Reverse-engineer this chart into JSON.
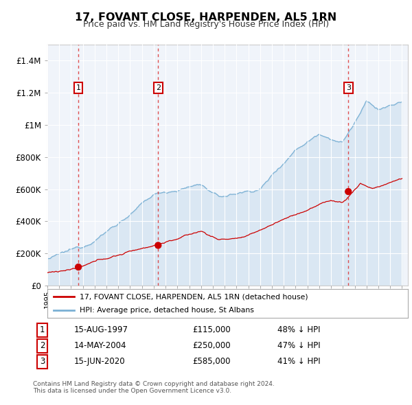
{
  "title": "17, FOVANT CLOSE, HARPENDEN, AL5 1RN",
  "subtitle": "Price paid vs. HM Land Registry's House Price Index (HPI)",
  "background_color": "#ffffff",
  "plot_bg_color": "#f0f4fa",
  "ylim": [
    0,
    1500000
  ],
  "yticks": [
    0,
    200000,
    400000,
    600000,
    800000,
    1000000,
    1200000,
    1400000
  ],
  "ytick_labels": [
    "£0",
    "£200K",
    "£400K",
    "£600K",
    "£800K",
    "£1M",
    "£1.2M",
    "£1.4M"
  ],
  "transactions": [
    {
      "date_decimal": 1997.62,
      "price": 115000,
      "label": "1"
    },
    {
      "date_decimal": 2004.37,
      "price": 250000,
      "label": "2"
    },
    {
      "date_decimal": 2020.46,
      "price": 585000,
      "label": "3"
    }
  ],
  "transaction_details": [
    {
      "num": "1",
      "date": "15-AUG-1997",
      "price": "£115,000",
      "note": "48% ↓ HPI"
    },
    {
      "num": "2",
      "date": "14-MAY-2004",
      "price": "£250,000",
      "note": "47% ↓ HPI"
    },
    {
      "num": "3",
      "date": "15-JUN-2020",
      "price": "£585,000",
      "note": "41% ↓ HPI"
    }
  ],
  "hpi_color": "#7ab0d4",
  "price_color": "#cc0000",
  "dashed_line_color": "#dd3333",
  "footer_text": "Contains HM Land Registry data © Crown copyright and database right 2024.\nThis data is licensed under the Open Government Licence v3.0.",
  "legend_label_price": "17, FOVANT CLOSE, HARPENDEN, AL5 1RN (detached house)",
  "legend_label_hpi": "HPI: Average price, detached house, St Albans"
}
